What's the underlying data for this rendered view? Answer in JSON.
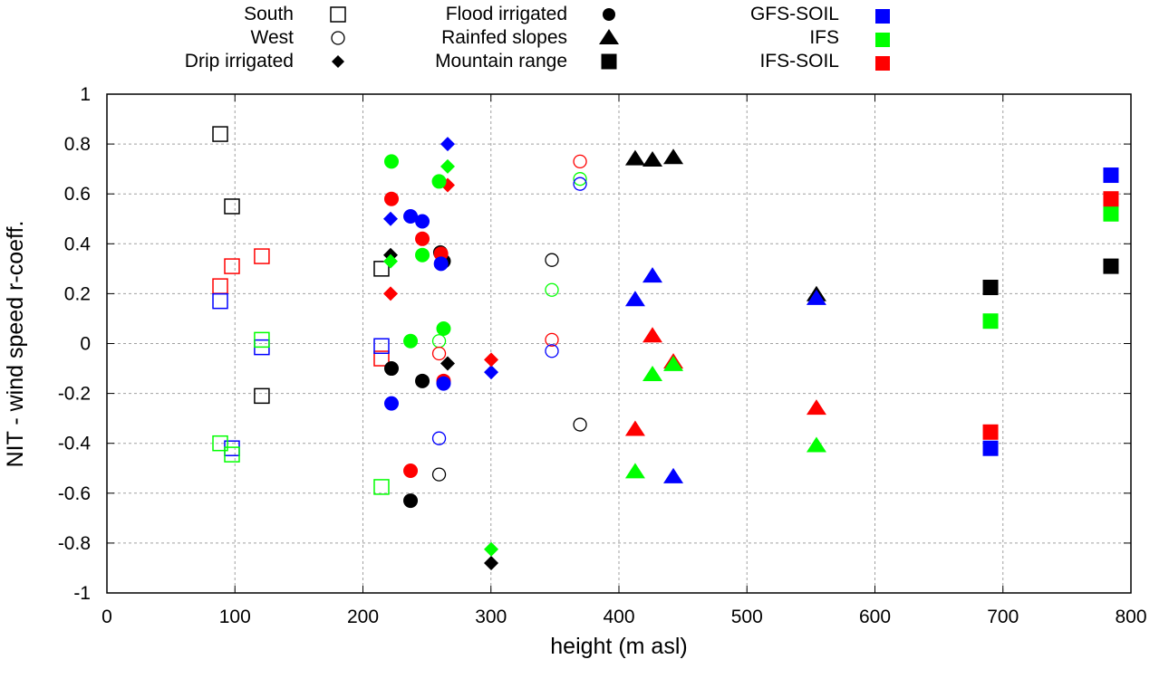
{
  "chart_data": {
    "type": "scatter",
    "title": "",
    "xlabel": "height (m asl)",
    "ylabel": "NIT - wind speed r-coeff.",
    "xlim": [
      0,
      800
    ],
    "ylim": [
      -1,
      1
    ],
    "xticks": [
      0,
      100,
      200,
      300,
      400,
      500,
      600,
      700,
      800
    ],
    "yticks": [
      -1,
      -0.8,
      -0.6,
      -0.4,
      -0.2,
      0,
      0.2,
      0.4,
      0.6,
      0.8,
      1
    ],
    "xtick_labels": [
      "0",
      "100",
      "200",
      "300",
      "400",
      "500",
      "600",
      "700",
      "800"
    ],
    "ytick_labels": [
      "-1",
      "-0.8",
      "-0.6",
      "-0.4",
      "-0.2",
      "0",
      "0.2",
      "0.4",
      "0.6",
      "0.8",
      "1"
    ],
    "grid": true,
    "legend_placement": "top",
    "legend_regions": [
      {
        "name": "South",
        "marker": "open-square"
      },
      {
        "name": "West",
        "marker": "open-circle"
      },
      {
        "name": "Drip irrigated",
        "marker": "filled-diamond"
      },
      {
        "name": "Flood irrigated",
        "marker": "filled-circle"
      },
      {
        "name": "Rainfed slopes",
        "marker": "filled-triangle"
      },
      {
        "name": "Mountain range",
        "marker": "filled-square"
      }
    ],
    "legend_models": [
      {
        "name": "GFS-SOIL",
        "color": "#0000ff"
      },
      {
        "name": "IFS",
        "color": "#00ff00"
      },
      {
        "name": "IFS-SOIL",
        "color": "#ff0000"
      }
    ],
    "model_colors": {
      "GFS": "#000000",
      "GFS-SOIL": "#0000ff",
      "IFS": "#00ff00",
      "IFS-SOIL": "#ff0000"
    },
    "series": [
      {
        "region": "South",
        "model": "GFS",
        "points": [
          [
            88.5,
            0.84
          ],
          [
            97.7,
            0.55
          ],
          [
            121,
            -0.21
          ],
          [
            214.5,
            0.3
          ]
        ]
      },
      {
        "region": "South",
        "model": "IFS-SOIL",
        "points": [
          [
            88.5,
            0.23
          ],
          [
            97.7,
            0.31
          ],
          [
            121,
            0.35
          ],
          [
            214.5,
            -0.06
          ]
        ]
      },
      {
        "region": "South",
        "model": "GFS-SOIL",
        "points": [
          [
            88.5,
            0.17
          ],
          [
            97.7,
            -0.42
          ],
          [
            121,
            -0.015
          ],
          [
            214.5,
            -0.01
          ]
        ]
      },
      {
        "region": "South",
        "model": "IFS",
        "points": [
          [
            88.5,
            -0.4
          ],
          [
            97.7,
            -0.445
          ],
          [
            121,
            0.015
          ],
          [
            214.5,
            -0.575
          ]
        ]
      },
      {
        "region": "West",
        "model": "GFS",
        "points": [
          [
            259.5,
            -0.525
          ],
          [
            347.6,
            0.335
          ],
          [
            369.6,
            -0.325
          ]
        ]
      },
      {
        "region": "West",
        "model": "IFS",
        "points": [
          [
            259.5,
            0.01
          ],
          [
            347.6,
            0.215
          ],
          [
            369.6,
            0.66
          ]
        ]
      },
      {
        "region": "West",
        "model": "IFS-SOIL",
        "points": [
          [
            259.5,
            -0.04
          ],
          [
            347.6,
            0.015
          ],
          [
            369.6,
            0.73
          ]
        ]
      },
      {
        "region": "West",
        "model": "GFS-SOIL",
        "points": [
          [
            259.5,
            -0.38
          ],
          [
            347.6,
            -0.03
          ],
          [
            369.6,
            0.64
          ]
        ]
      },
      {
        "region": "Drip irrigated",
        "model": "GFS",
        "points": [
          [
            221.6,
            0.355
          ],
          [
            266.2,
            -0.08
          ],
          [
            300.2,
            -0.88
          ]
        ]
      },
      {
        "region": "Drip irrigated",
        "model": "GFS-SOIL",
        "points": [
          [
            221.6,
            0.5
          ],
          [
            266.2,
            0.8
          ],
          [
            300.2,
            -0.115
          ]
        ]
      },
      {
        "region": "Drip irrigated",
        "model": "IFS",
        "points": [
          [
            221.6,
            0.33
          ],
          [
            266.2,
            0.71
          ],
          [
            300.2,
            -0.825
          ]
        ]
      },
      {
        "region": "Drip irrigated",
        "model": "IFS-SOIL",
        "points": [
          [
            221.6,
            0.2
          ],
          [
            266.2,
            0.635
          ],
          [
            300.2,
            -0.065
          ]
        ]
      },
      {
        "region": "Flood irrigated",
        "model": "GFS",
        "points": [
          [
            222.3,
            -0.1
          ],
          [
            237.2,
            -0.63
          ],
          [
            246.4,
            -0.15
          ],
          [
            260.5,
            0.365
          ],
          [
            263,
            0.33
          ]
        ]
      },
      {
        "region": "Flood irrigated",
        "model": "IFS",
        "points": [
          [
            222.3,
            0.73
          ],
          [
            237.2,
            0.01
          ],
          [
            246.4,
            0.355
          ],
          [
            259.5,
            0.65
          ],
          [
            263,
            0.06
          ]
        ]
      },
      {
        "region": "Flood irrigated",
        "model": "IFS-SOIL",
        "points": [
          [
            222.3,
            0.58
          ],
          [
            237.2,
            -0.51
          ],
          [
            246.4,
            0.42
          ],
          [
            261,
            0.36
          ],
          [
            263,
            -0.15
          ]
        ]
      },
      {
        "region": "Flood irrigated",
        "model": "GFS-SOIL",
        "points": [
          [
            222.3,
            -0.24
          ],
          [
            237.2,
            0.51
          ],
          [
            246.4,
            0.49
          ],
          [
            261,
            0.32
          ],
          [
            263,
            -0.16
          ]
        ]
      },
      {
        "region": "Rainfed slopes",
        "model": "GFS",
        "points": [
          [
            412.7,
            0.74
          ],
          [
            426.2,
            0.735
          ],
          [
            442.5,
            0.745
          ],
          [
            554.3,
            0.195
          ]
        ]
      },
      {
        "region": "Rainfed slopes",
        "model": "GFS-SOIL",
        "points": [
          [
            412.7,
            0.175
          ],
          [
            426.2,
            0.27
          ],
          [
            442.5,
            -0.535
          ],
          [
            554.3,
            0.18
          ]
        ]
      },
      {
        "region": "Rainfed slopes",
        "model": "IFS-SOIL",
        "points": [
          [
            412.7,
            -0.345
          ],
          [
            426.2,
            0.03
          ],
          [
            442.5,
            -0.075
          ],
          [
            554.3,
            -0.26
          ]
        ]
      },
      {
        "region": "Rainfed slopes",
        "model": "IFS",
        "points": [
          [
            412.7,
            -0.515
          ],
          [
            426.2,
            -0.125
          ],
          [
            442.5,
            -0.085
          ],
          [
            554.3,
            -0.41
          ]
        ]
      },
      {
        "region": "Mountain range",
        "model": "GFS",
        "points": [
          [
            690.3,
            0.225
          ],
          [
            784.4,
            0.31
          ]
        ]
      },
      {
        "region": "Mountain range",
        "model": "IFS",
        "points": [
          [
            690.3,
            0.09
          ],
          [
            784.4,
            0.52
          ]
        ]
      },
      {
        "region": "Mountain range",
        "model": "IFS-SOIL",
        "points": [
          [
            690.3,
            -0.355
          ],
          [
            784.4,
            0.58
          ]
        ]
      },
      {
        "region": "Mountain range",
        "model": "GFS-SOIL",
        "points": [
          [
            690.3,
            -0.42
          ],
          [
            784.4,
            0.675
          ]
        ]
      }
    ]
  }
}
